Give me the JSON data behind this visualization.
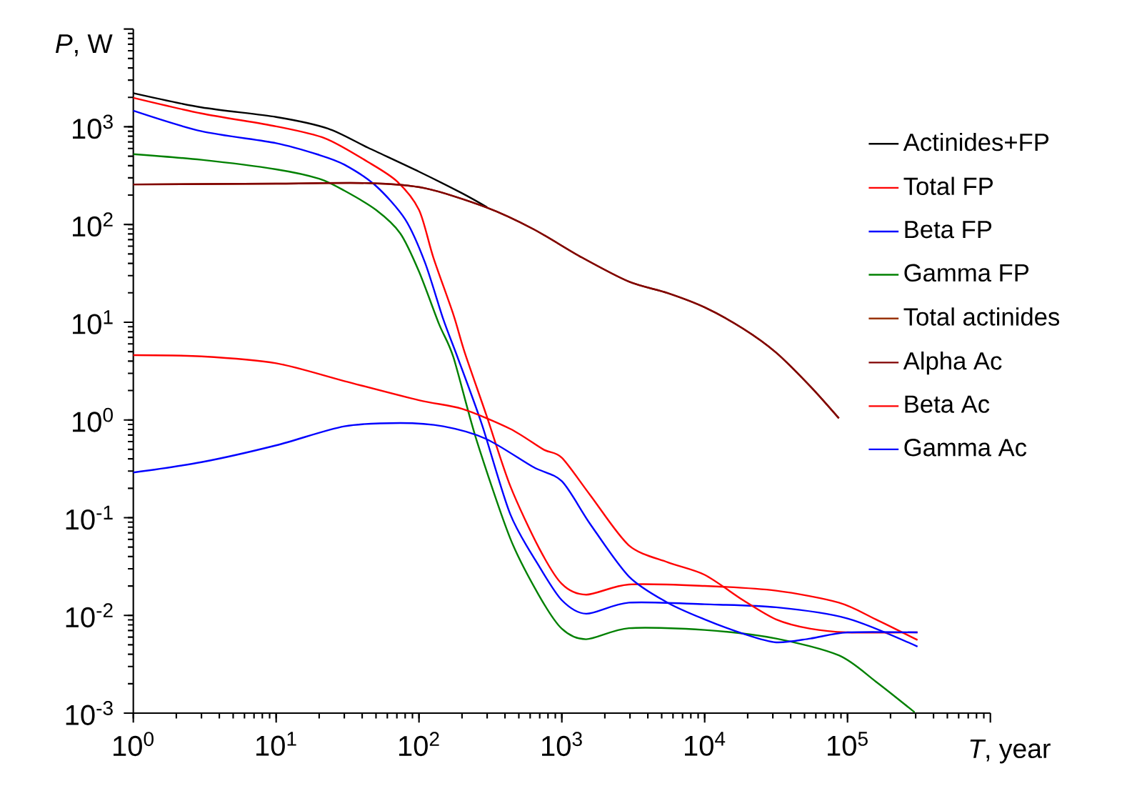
{
  "chart_data": {
    "type": "line",
    "xlabel": "*T*, year",
    "ylabel": "*P*, W",
    "log": "xy",
    "legend": "right",
    "marker": "none",
    "line_style": "solid",
    "grid": false,
    "xlim": [
      1,
      1000000
    ],
    "ylim": [
      0.001,
      10000
    ],
    "xticks": [
      {
        "value": 1,
        "label": "10$^{0}$"
      },
      {
        "value": 10,
        "label": "10$^{1}$"
      },
      {
        "value": 100,
        "label": "10$^{2}$"
      },
      {
        "value": 1000,
        "label": "10$^{3}$"
      },
      {
        "value": 10000,
        "label": "10$^{4}$"
      },
      {
        "value": 100000,
        "label": "10$^{5}$"
      },
      {
        "value": 1000000,
        "label": null
      }
    ],
    "yticks": [
      {
        "value": 0.001,
        "label": "10$^{-3}$"
      },
      {
        "value": 0.01,
        "label": "10$^{-2}$"
      },
      {
        "value": 0.1,
        "label": "10$^{-1}$"
      },
      {
        "value": 1,
        "label": "10$^{0}$"
      },
      {
        "value": 10,
        "label": "10$^{1}$"
      },
      {
        "value": 100,
        "label": "10$^{2}$"
      },
      {
        "value": 1000,
        "label": "10$^{3}$"
      },
      {
        "value": 10000,
        "label": null
      }
    ],
    "series": [
      {
        "name": "Actinides+FP",
        "color": "#000000",
        "x": [
          1,
          3,
          10,
          23,
          44,
          100,
          200,
          300
        ],
        "values": [
          2210,
          1580,
          1260,
          960,
          610,
          347,
          209,
          150
        ]
      },
      {
        "name": "Total FP",
        "color": "#ff0000",
        "x": [
          1,
          3,
          10,
          22,
          44,
          70,
          100,
          126,
          174,
          209,
          295,
          436,
          692,
          1000,
          1480,
          2950,
          10000,
          31600,
          87000,
          158000,
          309000
        ],
        "values": [
          1980,
          1370,
          1010,
          762,
          436,
          277,
          141,
          46,
          12,
          4.9,
          1.14,
          0.21,
          0.049,
          0.021,
          0.0163,
          0.0207,
          0.02,
          0.0179,
          0.0135,
          0.0091,
          0.0056
        ]
      },
      {
        "name": "Beta FP",
        "color": "#0000ff",
        "x": [
          1,
          3,
          10,
          20,
          30,
          50,
          80,
          110,
          148,
          186,
          275,
          436,
          692,
          1000,
          1480,
          2950,
          10000,
          31600,
          100000,
          309000
        ],
        "values": [
          1460,
          900,
          680,
          515,
          410,
          248,
          113,
          41,
          10.7,
          4.4,
          0.91,
          0.108,
          0.032,
          0.0143,
          0.0104,
          0.0135,
          0.013,
          0.0121,
          0.0093,
          0.0048
        ]
      },
      {
        "name": "Gamma FP",
        "color": "#008000",
        "x": [
          1,
          3,
          10,
          20,
          30,
          50,
          74,
          100,
          138,
          174,
          251,
          436,
          692,
          1000,
          1480,
          2950,
          10000,
          31600,
          87000,
          158000,
          295000
        ],
        "values": [
          525,
          459,
          367,
          294,
          222,
          141,
          81,
          33,
          9.6,
          4.4,
          0.645,
          0.061,
          0.016,
          0.0073,
          0.0057,
          0.0074,
          0.0071,
          0.0058,
          0.0039,
          0.0021,
          0.00102
        ]
      },
      {
        "name": "Total actinides",
        "color": "#993300",
        "x": [
          1,
          10,
          44,
          110,
          295,
          630,
          1380,
          2950,
          5500,
          10000,
          18600,
          31600,
          55000,
          87000
        ],
        "values": [
          257,
          262,
          265,
          235,
          150,
          90,
          46,
          26,
          19.9,
          14.2,
          8.6,
          4.9,
          2.2,
          1.04
        ]
      },
      {
        "name": "Alpha Ac",
        "color": "#800000",
        "x": [
          1,
          10,
          44,
          110,
          295,
          630,
          1380,
          2950,
          5500,
          10000,
          18600,
          31600,
          55000,
          87000
        ],
        "values": [
          257,
          262,
          265,
          235,
          150,
          90,
          46,
          26,
          19.9,
          14.2,
          8.6,
          4.9,
          2.2,
          1.04
        ]
      },
      {
        "name": "Beta Ac",
        "color": "#ff0000",
        "x": [
          1,
          3,
          10,
          30,
          100,
          200,
          436,
          741,
          1000,
          1580,
          2950,
          5500,
          10000,
          18600,
          31600,
          55000,
          100000,
          309000
        ],
        "values": [
          4.6,
          4.47,
          3.8,
          2.5,
          1.59,
          1.3,
          0.81,
          0.5,
          0.41,
          0.17,
          0.052,
          0.035,
          0.026,
          0.0143,
          0.0091,
          0.0073,
          0.0067,
          0.0067
        ]
      },
      {
        "name": "Gamma Ac",
        "color": "#0000ff",
        "x": [
          1,
          3,
          10,
          30,
          74,
          148,
          295,
          630,
          1000,
          1580,
          2950,
          5500,
          10000,
          18600,
          31600,
          55000,
          100000,
          309000
        ],
        "values": [
          0.29,
          0.37,
          0.55,
          0.86,
          0.93,
          0.86,
          0.64,
          0.33,
          0.236,
          0.086,
          0.025,
          0.0135,
          0.0091,
          0.0065,
          0.0053,
          0.0058,
          0.0067,
          0.0067
        ]
      }
    ]
  }
}
